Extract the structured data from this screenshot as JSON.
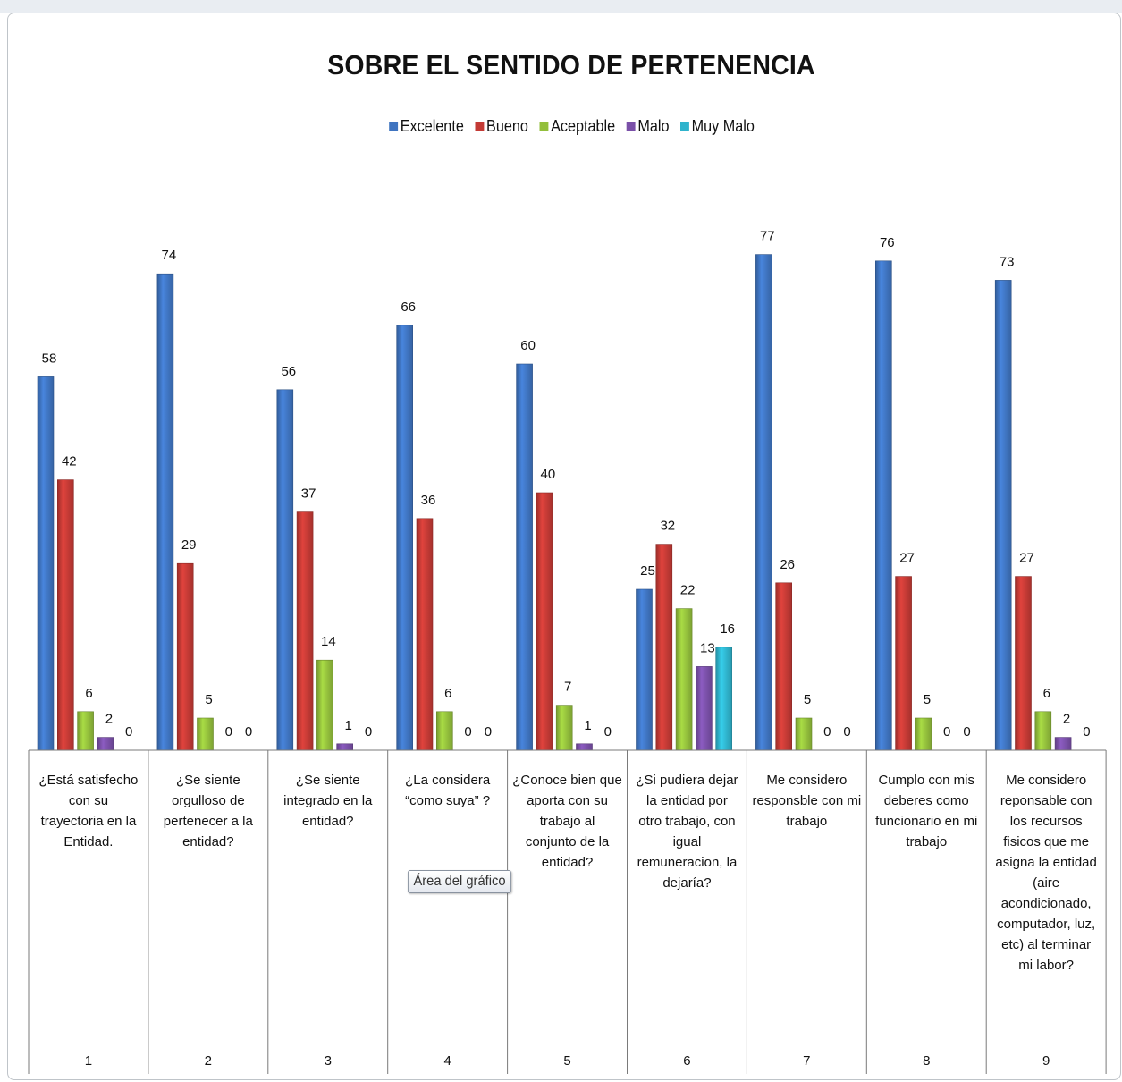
{
  "chart_data": {
    "type": "bar",
    "title": "SOBRE EL SENTIDO DE PERTENENCIA",
    "legend_position": "top",
    "grid": false,
    "ylim": [
      0,
      80
    ],
    "categories": [
      "1",
      "2",
      "3",
      "4",
      "5",
      "6",
      "7",
      "8",
      "9"
    ],
    "category_labels": [
      "¿Está satisfecho con su trayectoria en la Entidad.",
      "¿Se siente orgulloso de pertenecer a la entidad?",
      "¿Se siente integrado en la entidad?",
      "¿La considera “como suya” ?",
      "¿Conoce bien que aporta con su trabajo al conjunto de la entidad?",
      "¿Si pudiera dejar la entidad por otro trabajo, con igual remuneracion, la dejaría?",
      "Me considero responsble con mi trabajo",
      "Cumplo con mis deberes como funcionario en mi trabajo",
      "Me considero reponsable con los recursos fisicos que me asigna la entidad (aire acondicionado, computador, luz, etc) al terminar mi labor?"
    ],
    "series": [
      {
        "name": "Excelente",
        "color": "#3f74c0",
        "values": [
          58,
          74,
          56,
          66,
          60,
          25,
          77,
          76,
          73
        ]
      },
      {
        "name": "Bueno",
        "color": "#c33a35",
        "values": [
          42,
          29,
          37,
          36,
          40,
          32,
          26,
          27,
          27
        ]
      },
      {
        "name": "Aceptable",
        "color": "#93bf3c",
        "values": [
          6,
          5,
          14,
          6,
          7,
          22,
          5,
          5,
          6
        ]
      },
      {
        "name": "Malo",
        "color": "#7a50a8",
        "values": [
          2,
          0,
          1,
          0,
          1,
          13,
          0,
          0,
          2
        ]
      },
      {
        "name": "Muy Malo",
        "color": "#2fb3cc",
        "values": [
          0,
          0,
          0,
          0,
          0,
          16,
          0,
          0,
          0
        ]
      }
    ]
  },
  "tooltip": {
    "label": "Área del gráfico"
  }
}
